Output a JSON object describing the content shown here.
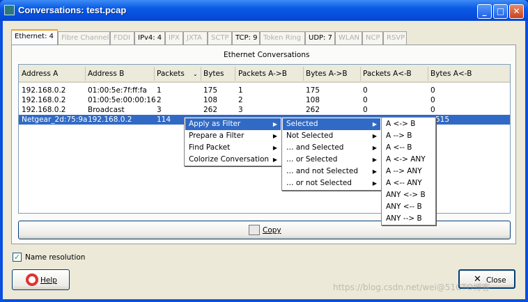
{
  "window": {
    "title": "Conversations: test.pcap",
    "minimize": "_",
    "maximize": "□",
    "close": "✕"
  },
  "tabs": [
    {
      "label": "Ethernet: 4",
      "enabled": true,
      "active": true
    },
    {
      "label": "Fibre Channel",
      "enabled": false
    },
    {
      "label": "FDDI",
      "enabled": false
    },
    {
      "label": "IPv4: 4",
      "enabled": true
    },
    {
      "label": "IPX",
      "enabled": false
    },
    {
      "label": "JXTA",
      "enabled": false
    },
    {
      "label": "SCTP",
      "enabled": false
    },
    {
      "label": "TCP: 9",
      "enabled": true
    },
    {
      "label": "Token Ring",
      "enabled": false
    },
    {
      "label": "UDP: 7",
      "enabled": true
    },
    {
      "label": "WLAN",
      "enabled": false
    },
    {
      "label": "NCP",
      "enabled": false
    },
    {
      "label": "RSVP",
      "enabled": false
    }
  ],
  "panel_title": "Ethernet Conversations",
  "table": {
    "columns": [
      "Address A",
      "Address B",
      "Packets",
      "Bytes",
      "Packets A->B",
      "Bytes A->B",
      "Packets A<-B",
      "Bytes A<-B"
    ],
    "sort_indicator": "⌄",
    "rows": [
      [
        "192.168.0.2",
        "01:00:5e:7f:ff:fa",
        "1",
        "175",
        "1",
        "175",
        "0",
        "0"
      ],
      [
        "192.168.0.2",
        "01:00:5e:00:00:16",
        "2",
        "108",
        "2",
        "108",
        "0",
        "0"
      ],
      [
        "192.168.0.2",
        "Broadcast",
        "3",
        "262",
        "3",
        "262",
        "0",
        "0"
      ],
      [
        "Netgear_2d:75:9a",
        "192.168.0.2",
        "114",
        "",
        "",
        "",
        "",
        "515"
      ]
    ],
    "selected_row": 3
  },
  "context_menu": {
    "items": [
      "Apply as Filter",
      "Prepare a Filter",
      "Find Packet",
      "Colorize Conversation"
    ],
    "submenu": [
      "Selected",
      "Not Selected",
      "… and Selected",
      "… or Selected",
      "… and not Selected",
      "… or not Selected"
    ],
    "subsubmenu": [
      "A <-> B",
      "A --> B",
      "A <-- B",
      "A <-> ANY",
      "A --> ANY",
      "A <-- ANY",
      "ANY <-> B",
      "ANY <-- B",
      "ANY --> B"
    ],
    "arrow": "▶"
  },
  "copy_label": "Copy",
  "name_resolution": {
    "label": "Name resolution",
    "checked": true,
    "mark": "✓"
  },
  "help_label": "Help",
  "close_label": "Close",
  "close_icon": "✕",
  "watermark": "https://blog.csdn.net/wei@51CTO博客",
  "colors": {
    "title_bar": "#0a5ae6",
    "selection": "#316ac5",
    "window_bg": "#ece9d8"
  }
}
